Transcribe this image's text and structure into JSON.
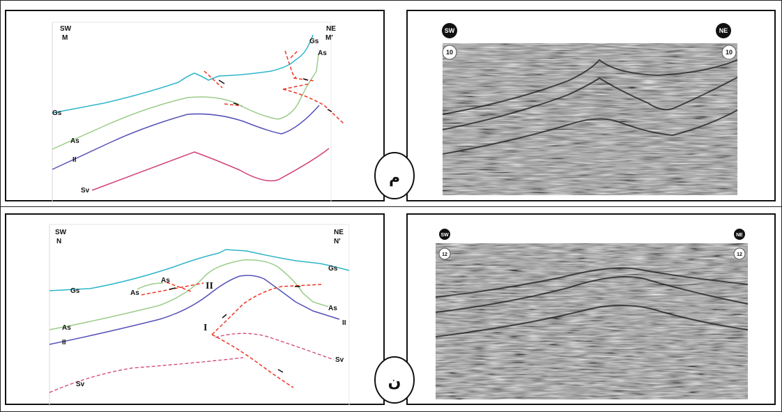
{
  "top": {
    "section": {
      "sw": "SW",
      "ne": "NE",
      "start": "M",
      "end": "M'",
      "horizons": {
        "gs_left": "Gs",
        "gs_right": "Gs",
        "as_left": "As",
        "as_right": "As",
        "ii": "II",
        "sv": "Sv"
      }
    },
    "circle_label": "م",
    "seismic": {
      "sw": "SW",
      "ne": "NE",
      "line_left": "10",
      "line_right": "10"
    }
  },
  "bottom": {
    "section": {
      "sw": "SW",
      "ne": "NE",
      "start": "N",
      "end": "N'",
      "horizons": {
        "gs_left": "Gs",
        "gs_right": "Gs",
        "as_top": "As",
        "as_mid": "As",
        "as_left": "As",
        "as_right": "As",
        "ii_left": "II",
        "ii_right": "II",
        "sv_left": "Sv",
        "sv_right": "Sv"
      },
      "fault_i": "I",
      "fault_ii": "II"
    },
    "circle_label": "ن",
    "seismic": {
      "sw": "SW",
      "ne": "NE",
      "line_left": "12",
      "line_right": "12"
    }
  },
  "colors": {
    "gs": "#2bb5c9",
    "as": "#9ccc8a",
    "ii": "#5450b8",
    "sv": "#d0407a",
    "fault": "#ee3322"
  }
}
